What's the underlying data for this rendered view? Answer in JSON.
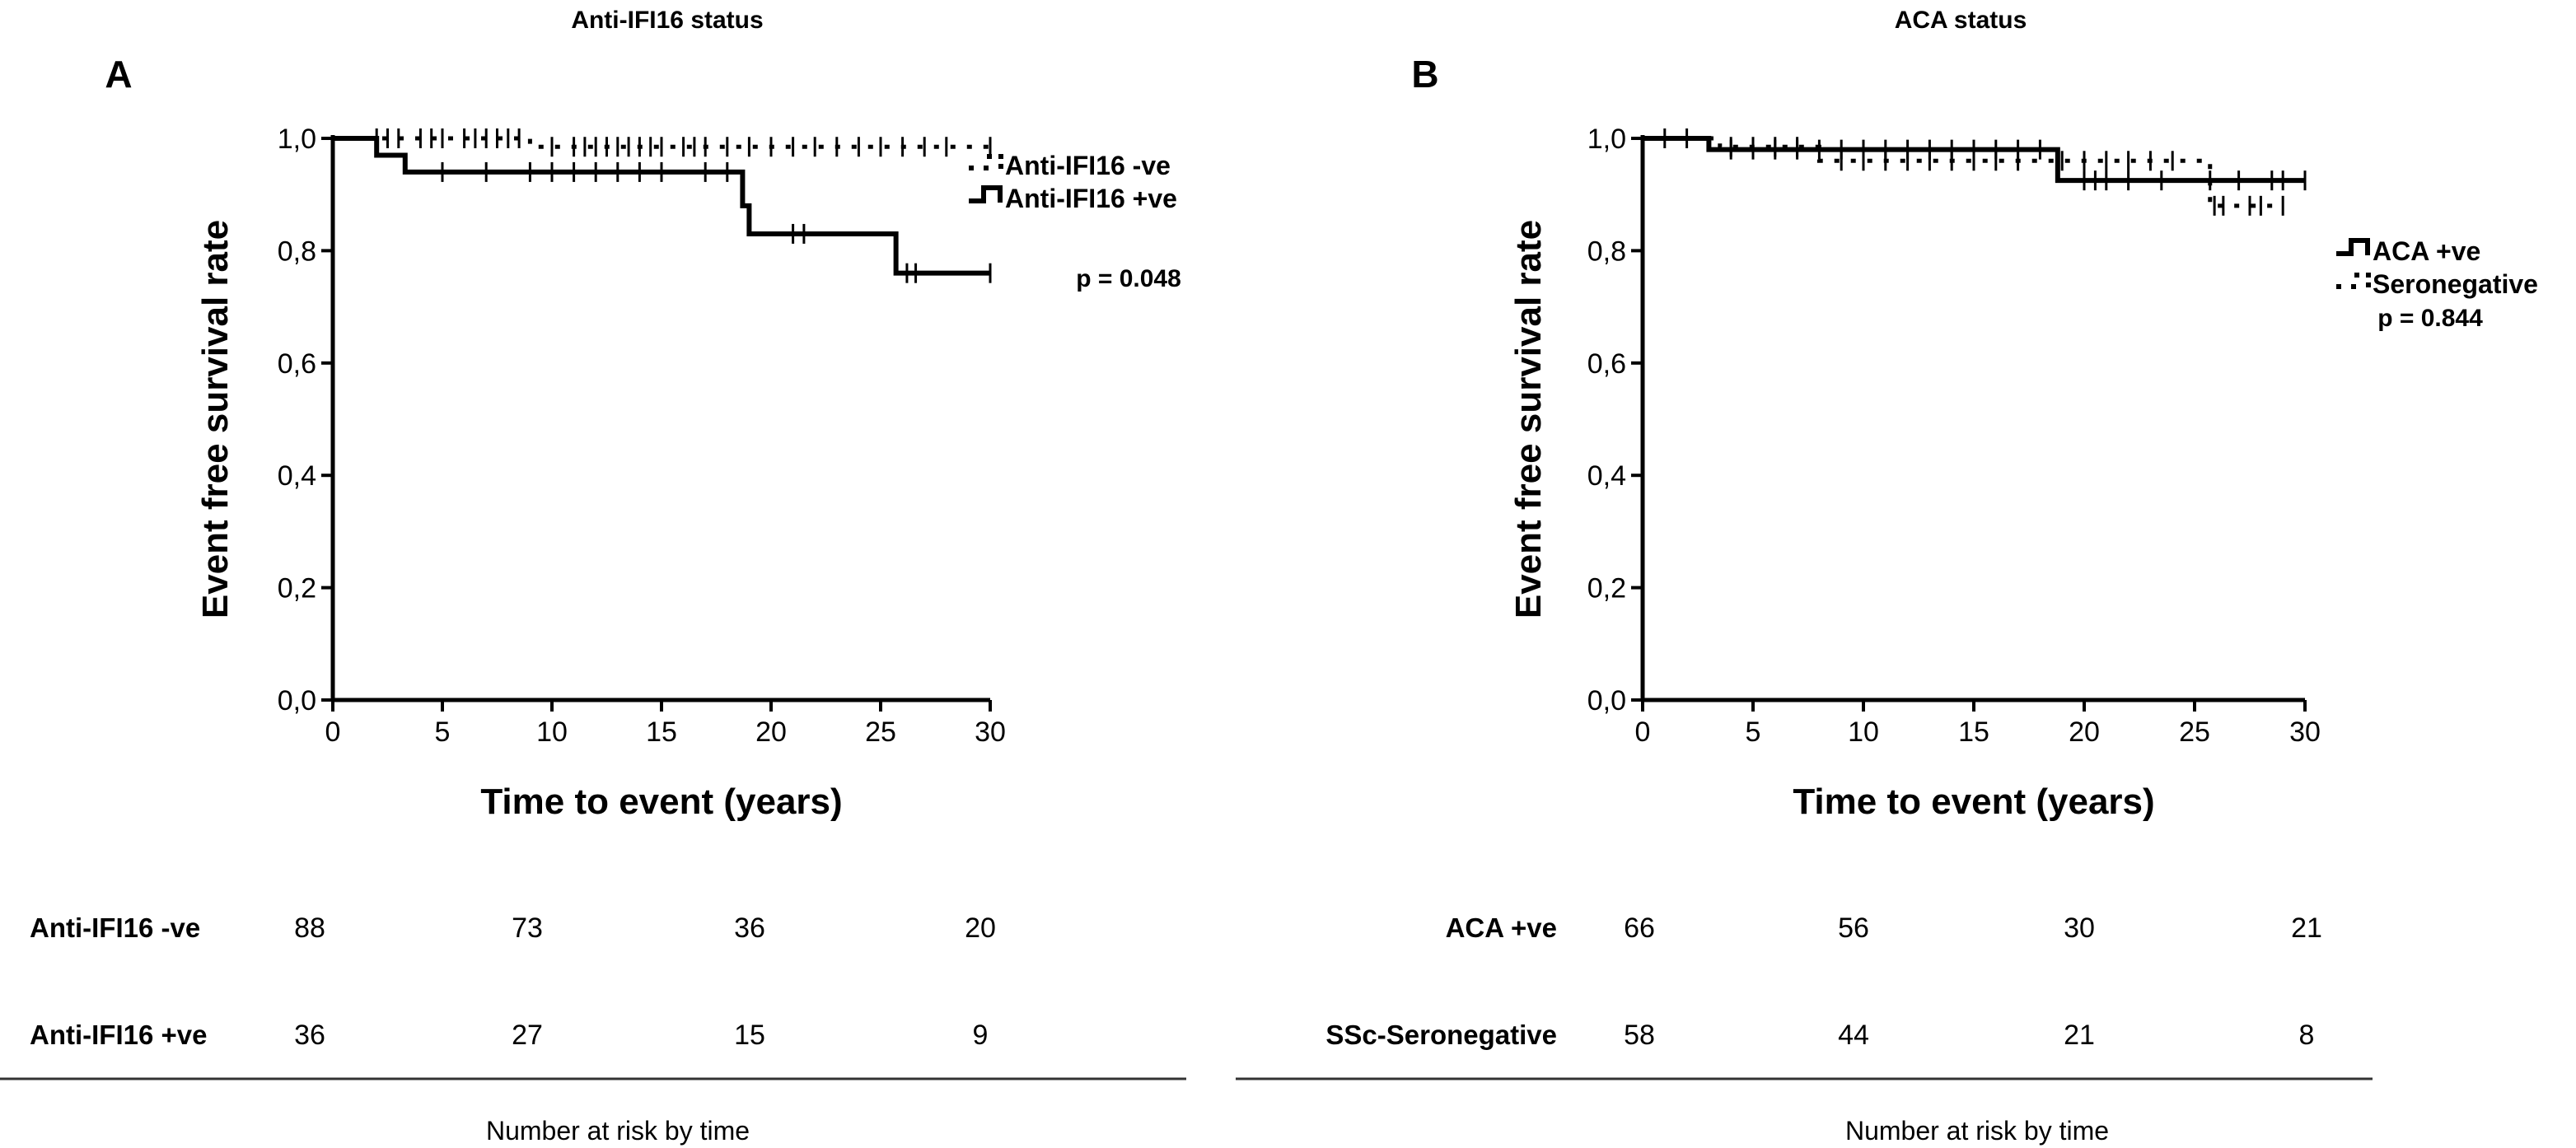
{
  "chart_data": [
    {
      "type": "line",
      "panel_letter": "A",
      "title": "Anti-IFI16 status",
      "xlabel": "Time to event (years)",
      "ylabel": "Event free survival rate",
      "xlim": [
        0,
        30
      ],
      "ylim": [
        0,
        1
      ],
      "xticks": [
        "0",
        "5",
        "10",
        "15",
        "20",
        "25",
        "30"
      ],
      "yticks": [
        "0,0",
        "0,2",
        "0,4",
        "0,6",
        "0,8",
        "1,0"
      ],
      "p_value": "p = 0.048",
      "series": [
        {
          "name": "Anti-IFI16 -ve",
          "style": "dotted",
          "steps": [
            [
              0,
              1.0
            ],
            [
              9,
              0.985
            ],
            [
              30,
              0.985
            ]
          ],
          "censored": [
            2,
            2.5,
            3,
            4,
            4.5,
            5,
            6,
            6.5,
            7,
            7.5,
            8,
            8.5,
            10,
            11,
            11.5,
            12,
            12.5,
            13,
            13.5,
            14,
            14.5,
            15,
            16,
            16.5,
            17,
            18,
            19,
            20,
            21,
            22,
            23,
            24,
            25,
            26,
            27,
            28,
            30
          ]
        },
        {
          "name": "Anti-IFI16 +ve",
          "style": "solid",
          "steps": [
            [
              0,
              1.0
            ],
            [
              2,
              0.97
            ],
            [
              3.3,
              0.94
            ],
            [
              18.7,
              0.88
            ],
            [
              19,
              0.83
            ],
            [
              25.7,
              0.76
            ],
            [
              30,
              0.76
            ]
          ],
          "censored": [
            5,
            7,
            9,
            10,
            11,
            12,
            13,
            14,
            15,
            17,
            18,
            21,
            21.5,
            26.2,
            26.6,
            30
          ]
        }
      ],
      "risk_table": {
        "times": [
          0,
          10,
          20,
          30
        ],
        "rows": [
          {
            "label": "Anti-IFI16 -ve",
            "values": [
              "88",
              "73",
              "36",
              "20"
            ]
          },
          {
            "label": "Anti-IFI16 +ve",
            "values": [
              "36",
              "27",
              "15",
              "9"
            ]
          }
        ],
        "caption": "Number at risk by time"
      }
    },
    {
      "type": "line",
      "panel_letter": "B",
      "title": "ACA status",
      "xlabel": "Time to event (years)",
      "ylabel": "Event free survival rate",
      "xlim": [
        0,
        30
      ],
      "ylim": [
        0,
        1
      ],
      "xticks": [
        "0",
        "5",
        "10",
        "15",
        "20",
        "25",
        "30"
      ],
      "yticks": [
        "0,0",
        "0,2",
        "0,4",
        "0,6",
        "0,8",
        "1,0"
      ],
      "p_value": "p = 0.844",
      "series": [
        {
          "name": "ACA +ve",
          "style": "solid",
          "steps": [
            [
              0,
              1.0
            ],
            [
              3,
              0.98
            ],
            [
              18.8,
              0.925
            ],
            [
              30,
              0.925
            ]
          ],
          "censored": [
            1,
            2,
            4,
            5,
            6,
            7,
            8,
            9,
            10,
            11,
            12,
            13,
            14,
            15,
            16,
            17,
            18,
            20,
            20.5,
            21,
            22,
            23.5,
            25.7,
            27,
            28.5,
            29,
            30
          ]
        },
        {
          "name": "Seronegative",
          "style": "dotted",
          "steps": [
            [
              0,
              1.0
            ],
            [
              3.5,
              0.985
            ],
            [
              8,
              0.96
            ],
            [
              25.7,
              0.88
            ],
            [
              29,
              0.88
            ]
          ],
          "censored": [
            4,
            5,
            6,
            7,
            9,
            10,
            11,
            12,
            13,
            14,
            15,
            16,
            17,
            19,
            20,
            21,
            22,
            23,
            24,
            25.9,
            26.3,
            27.5,
            28,
            29
          ]
        }
      ],
      "risk_table": {
        "times": [
          0,
          10,
          20,
          30
        ],
        "rows": [
          {
            "label": "ACA +ve",
            "values": [
              "66",
              "56",
              "30",
              "21"
            ]
          },
          {
            "label": "SSc-Seronegative",
            "values": [
              "58",
              "44",
              "21",
              "8"
            ]
          }
        ],
        "caption": "Number at risk by time"
      }
    }
  ]
}
